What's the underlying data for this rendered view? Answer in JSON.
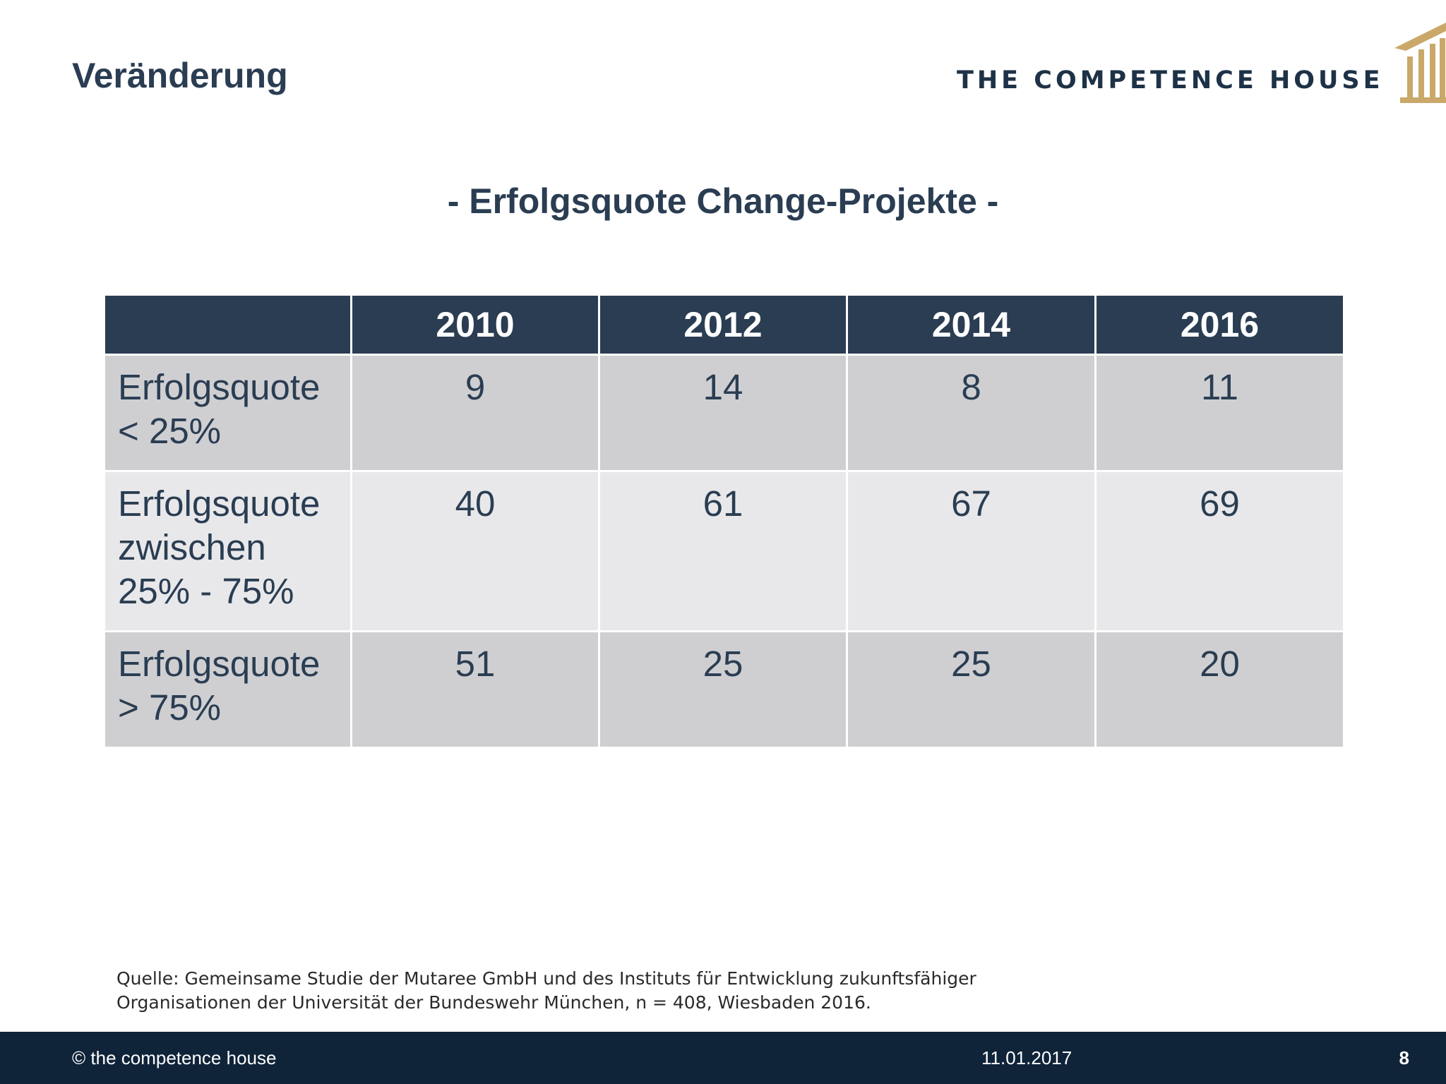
{
  "header": {
    "title": "Veränderung",
    "logo_text": "THE COMPETENCE HOUSE"
  },
  "subtitle": "- Erfolgsquote Change-Projekte -",
  "table": {
    "columns": [
      "",
      "2010",
      "2012",
      "2014",
      "2016"
    ],
    "rows": [
      {
        "label_lines": [
          "Erfolgsquote",
          "< 25%"
        ],
        "values": [
          "9",
          "14",
          "8",
          "11"
        ]
      },
      {
        "label_lines": [
          "Erfolgsquote",
          "zwischen",
          "25% - 75%"
        ],
        "values": [
          "40",
          "61",
          "67",
          "69"
        ]
      },
      {
        "label_lines": [
          "Erfolgsquote",
          "> 75%"
        ],
        "values": [
          "51",
          "25",
          "25",
          "20"
        ]
      }
    ]
  },
  "source": {
    "line1": "Quelle: Gemeinsame Studie der Mutaree GmbH und des Instituts für Entwicklung zukunftsfähiger",
    "line2": "Organisationen der Universität der Bundeswehr München, n = 408, Wiesbaden 2016."
  },
  "footer": {
    "copyright": "© the competence house",
    "date": "11.01.2017",
    "page": "8"
  },
  "colors": {
    "navy": "#2a3d52",
    "footer_bg": "#0f2339",
    "row_dark": "#cfcfd2",
    "row_light": "#e8e8ea",
    "logo_gold": "#c9a86a"
  }
}
